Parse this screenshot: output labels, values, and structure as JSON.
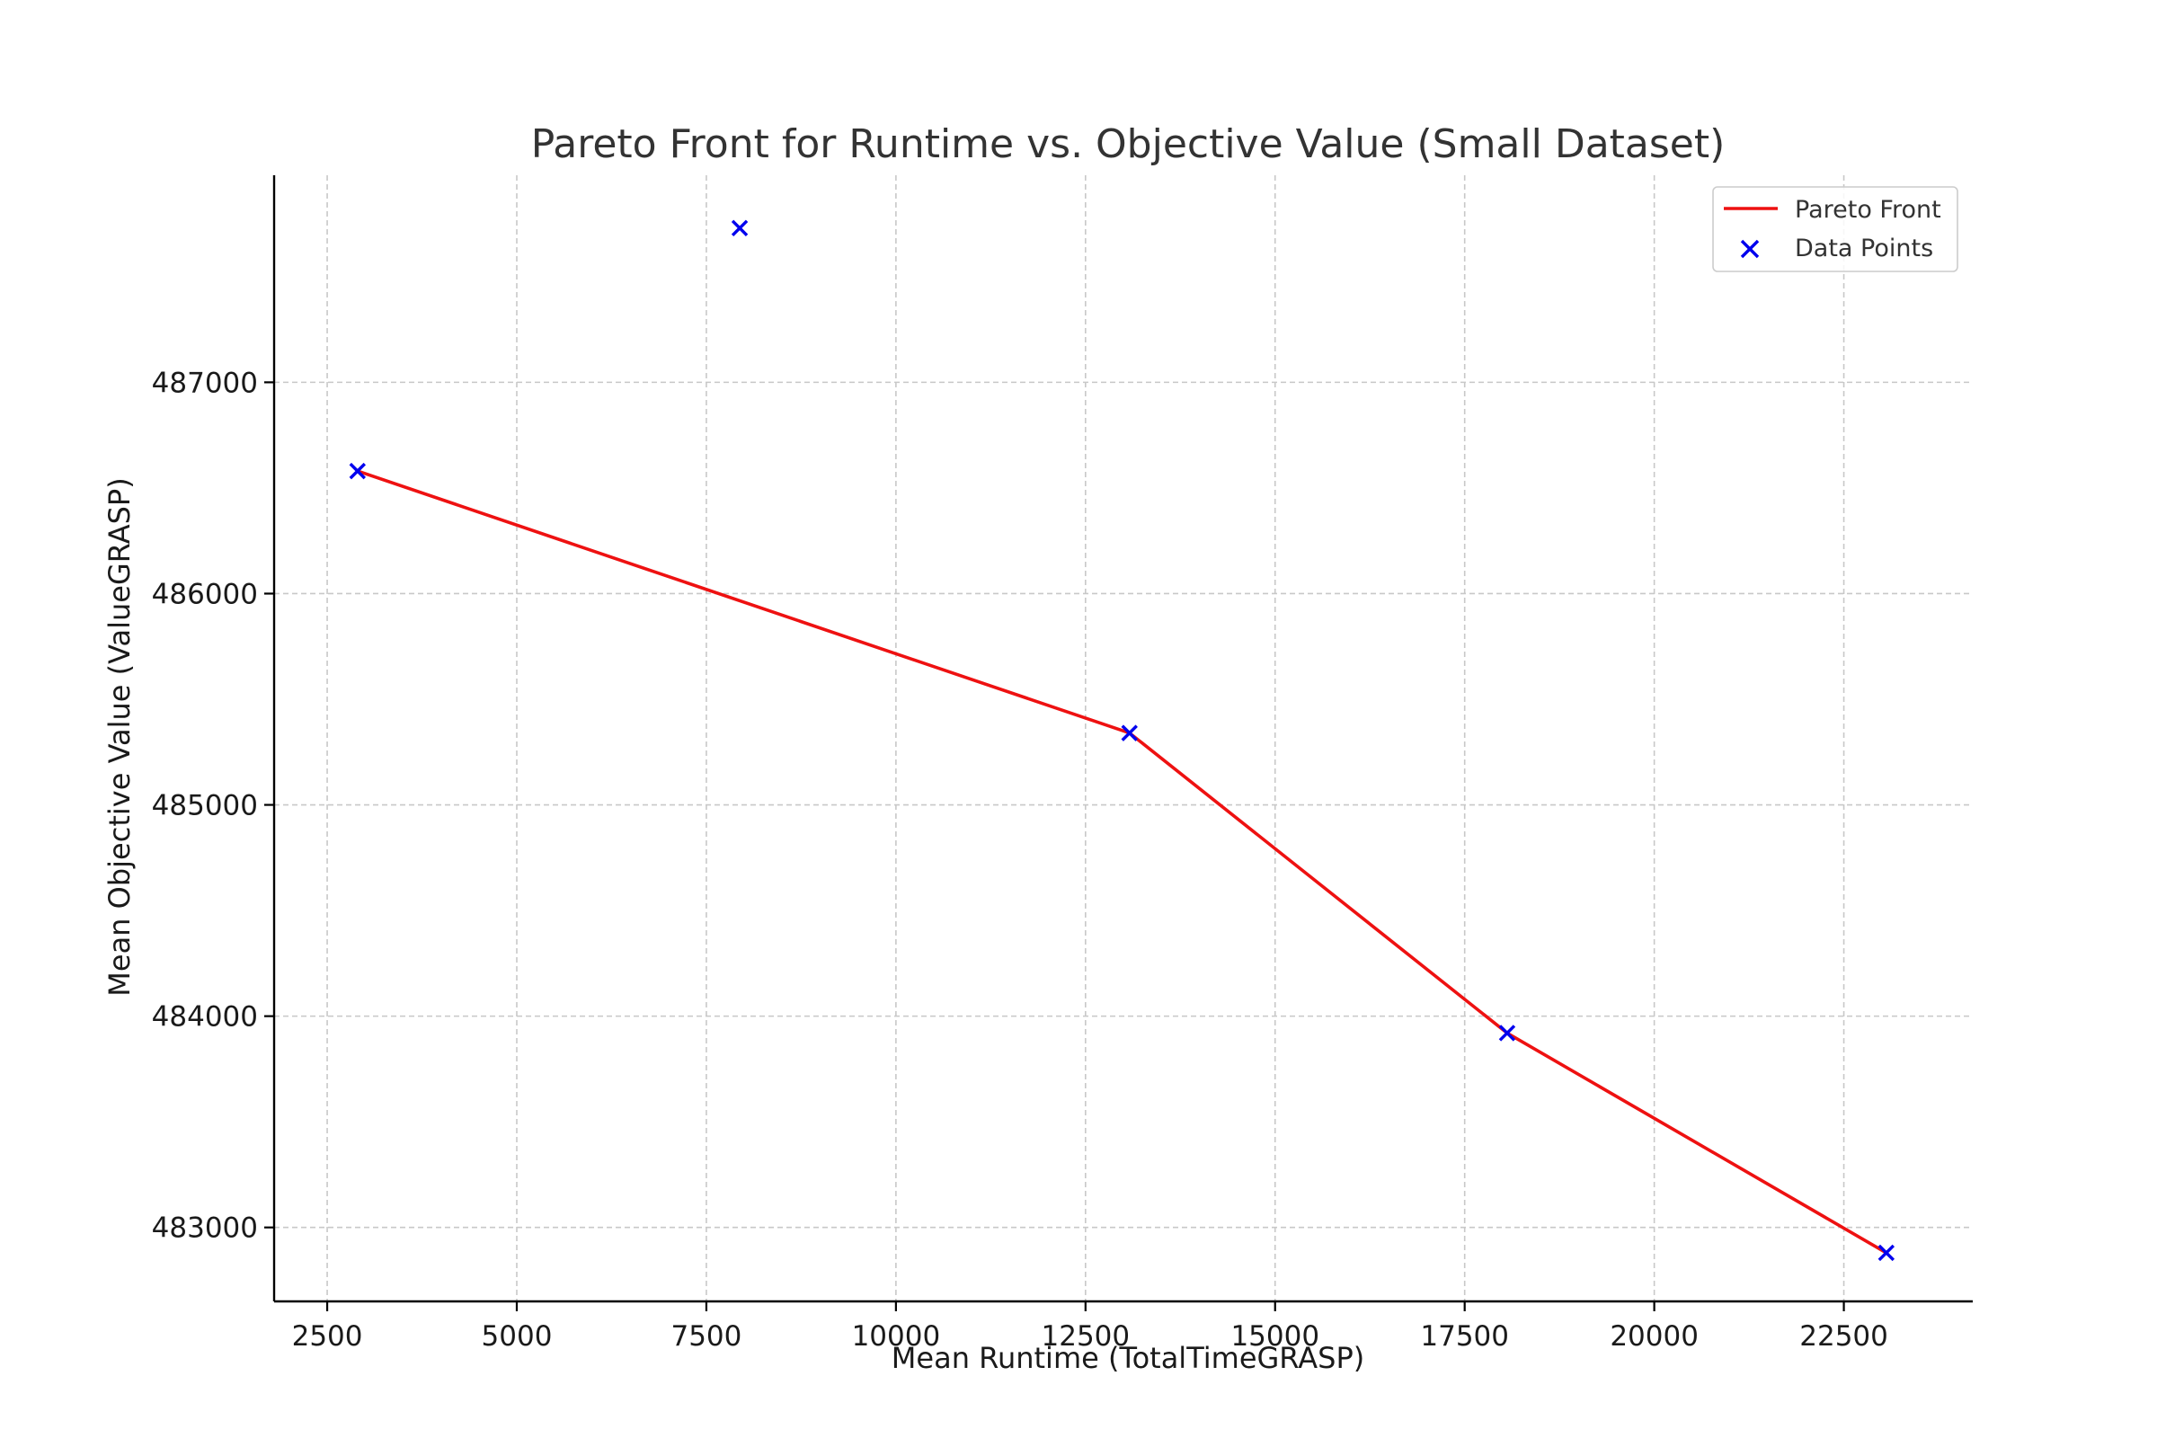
{
  "chart_data": {
    "type": "line",
    "title": "Pareto Front for Runtime vs. Objective Value (Small Dataset)",
    "xlabel": "Mean Runtime (TotalTimeGRASP)",
    "ylabel": "Mean Objective Value (ValueGRASP)",
    "xlim": [
      1800,
      24200
    ],
    "ylim": [
      482650,
      487980
    ],
    "xticks": [
      2500,
      5000,
      7500,
      10000,
      12500,
      15000,
      17500,
      20000,
      22500
    ],
    "yticks": [
      483000,
      484000,
      485000,
      486000,
      487000
    ],
    "grid": true,
    "legend_position": "top-right",
    "series": [
      {
        "name": "Pareto Front",
        "kind": "line",
        "color": "#ee1111",
        "points": [
          {
            "x": 2900,
            "y": 486580
          },
          {
            "x": 13080,
            "y": 485340
          },
          {
            "x": 18060,
            "y": 483920
          },
          {
            "x": 23060,
            "y": 482880
          }
        ]
      },
      {
        "name": "Data Points",
        "kind": "scatter",
        "marker": "x",
        "color": "#0000ee",
        "points": [
          {
            "x": 2900,
            "y": 486580
          },
          {
            "x": 7940,
            "y": 487730
          },
          {
            "x": 13080,
            "y": 485340
          },
          {
            "x": 18060,
            "y": 483920
          },
          {
            "x": 23060,
            "y": 482880
          }
        ]
      }
    ]
  }
}
